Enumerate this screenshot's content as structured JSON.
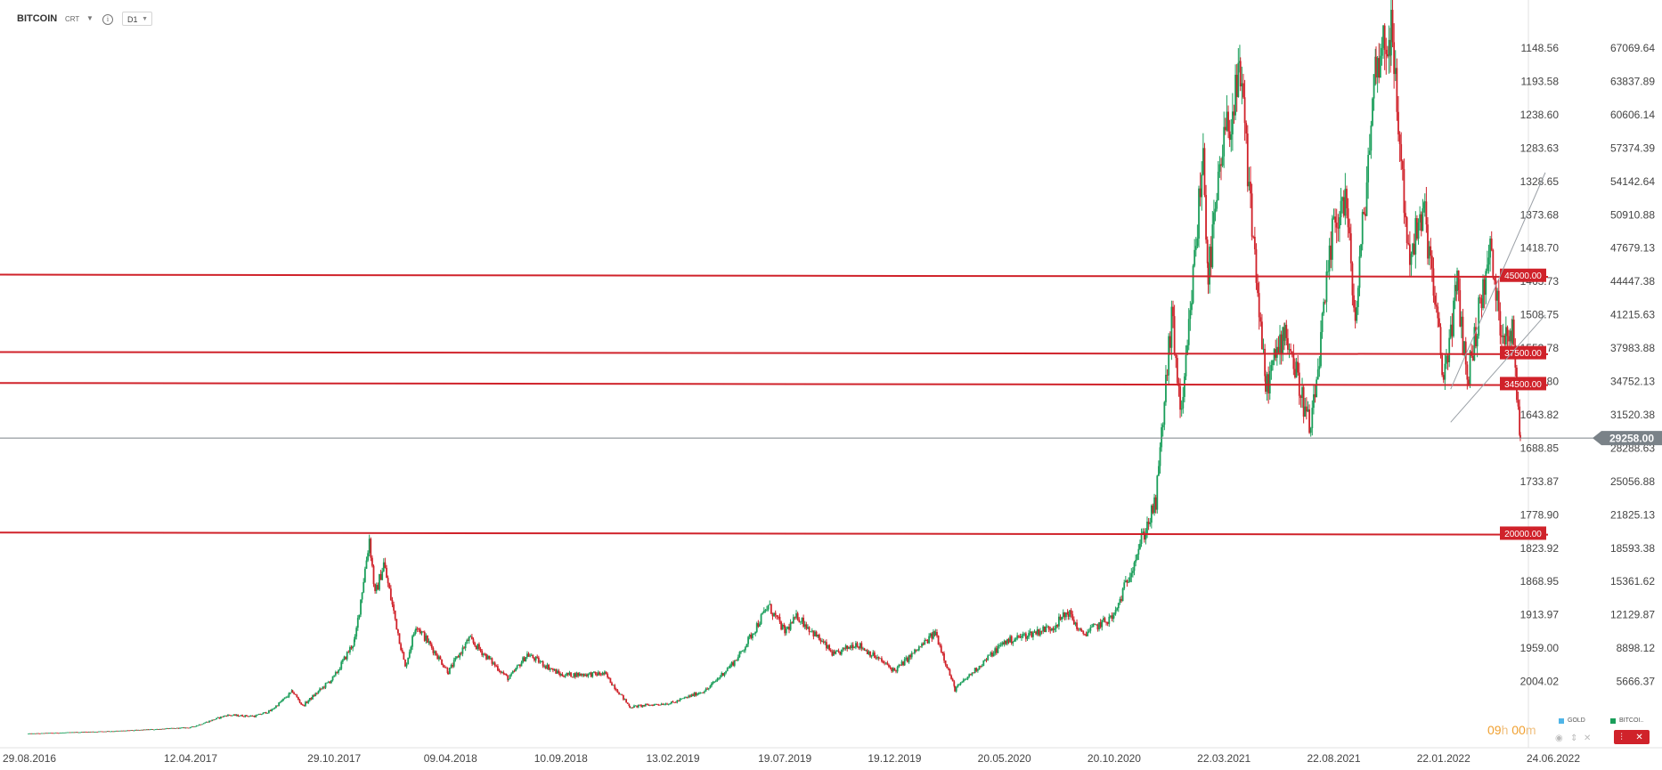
{
  "header": {
    "symbol": "BITCOIN",
    "sub": "CRT",
    "timeframe": "D1"
  },
  "timer": {
    "hours": "09",
    "h_unit": "h",
    "minutes": "00",
    "m_unit": "m"
  },
  "legend": [
    {
      "label": "GOLD",
      "color": "#4fb5e8"
    },
    {
      "label": "BITCOI..",
      "color": "#1a9e5a"
    }
  ],
  "colors": {
    "up": "#1a9e5a",
    "down": "#d0222a",
    "level": "#d0222a",
    "current": "#7a8288",
    "channel": "#9aa0a6"
  },
  "chart_data": {
    "type": "candlestick",
    "title": "BITCOIN",
    "x_ticks": [
      "29.08.2016",
      "12.04.2017",
      "29.10.2017",
      "09.04.2018",
      "10.09.2018",
      "13.02.2019",
      "19.07.2019",
      "19.12.2019",
      "20.05.2020",
      "20.10.2020",
      "22.03.2021",
      "22.08.2021",
      "22.01.2022",
      "24.06.2022"
    ],
    "y_ticks_left": [
      "1148.56",
      "1193.58",
      "1238.60",
      "1283.63",
      "1328.65",
      "1373.68",
      "1418.70",
      "1463.73",
      "1508.75",
      "1553.78",
      "1598.80",
      "1643.82",
      "1688.85",
      "1733.87",
      "1778.90",
      "1823.92",
      "1868.95",
      "1913.97",
      "1959.00",
      "2004.02"
    ],
    "y_ticks_right": [
      "67069.64",
      "63837.89",
      "60606.14",
      "57374.39",
      "54142.64",
      "50910.88",
      "47679.13",
      "44447.38",
      "41215.63",
      "37983.88",
      "34752.13",
      "31520.38",
      "28288.63",
      "25056.88",
      "21825.13",
      "18593.38",
      "15361.62",
      "12129.87",
      "8898.12",
      "5666.37"
    ],
    "ylim": [
      1000,
      72000
    ],
    "current_price": "29258.00",
    "levels": [
      {
        "price": 45000,
        "label": "45000.00"
      },
      {
        "price": 37500,
        "label": "37500.00"
      },
      {
        "price": 34500,
        "label": "34500.00"
      },
      {
        "price": 20000,
        "label": "20000.00"
      }
    ],
    "price_path": [
      [
        "29.08.2016",
        600
      ],
      [
        "15.01.2017",
        900
      ],
      [
        "12.04.2017",
        1200
      ],
      [
        "01.06.2017",
        2400
      ],
      [
        "10.07.2017",
        2300
      ],
      [
        "01.08.2017",
        2800
      ],
      [
        "01.09.2017",
        4700
      ],
      [
        "15.09.2017",
        3300
      ],
      [
        "29.10.2017",
        6100
      ],
      [
        "27.11.2017",
        9700
      ],
      [
        "17.12.2017",
        19500
      ],
      [
        "25.12.2017",
        14000
      ],
      [
        "06.01.2018",
        17100
      ],
      [
        "05.02.2018",
        7000
      ],
      [
        "20.02.2018",
        11200
      ],
      [
        "06.04.2018",
        6600
      ],
      [
        "05.05.2018",
        9800
      ],
      [
        "29.06.2018",
        5900
      ],
      [
        "25.07.2018",
        8300
      ],
      [
        "10.09.2018",
        6300
      ],
      [
        "10.11.2018",
        6400
      ],
      [
        "15.12.2018",
        3200
      ],
      [
        "13.02.2019",
        3600
      ],
      [
        "02.04.2019",
        4900
      ],
      [
        "15.05.2019",
        8000
      ],
      [
        "26.06.2019",
        13000
      ],
      [
        "19.07.2019",
        10500
      ],
      [
        "06.08.2019",
        12000
      ],
      [
        "26.09.2019",
        8200
      ],
      [
        "26.10.2019",
        9400
      ],
      [
        "19.12.2019",
        6700
      ],
      [
        "14.02.2020",
        10400
      ],
      [
        "12.03.2020",
        4900
      ],
      [
        "20.05.2020",
        9500
      ],
      [
        "27.07.2020",
        11000
      ],
      [
        "17.08.2020",
        12400
      ],
      [
        "05.09.2020",
        10200
      ],
      [
        "20.10.2020",
        12000
      ],
      [
        "25.11.2020",
        19000
      ],
      [
        "17.12.2020",
        23000
      ],
      [
        "08.01.2021",
        41000
      ],
      [
        "22.01.2021",
        31000
      ],
      [
        "21.02.2021",
        57000
      ],
      [
        "28.02.2021",
        45000
      ],
      [
        "22.03.2021",
        58000
      ],
      [
        "14.04.2021",
        64000
      ],
      [
        "19.05.2021",
        34000
      ],
      [
        "15.06.2021",
        40000
      ],
      [
        "21.07.2021",
        29800
      ],
      [
        "22.08.2021",
        50000
      ],
      [
        "07.09.2021",
        52700
      ],
      [
        "21.09.2021",
        40500
      ],
      [
        "20.10.2021",
        66000
      ],
      [
        "10.11.2021",
        68700
      ],
      [
        "04.12.2021",
        47000
      ],
      [
        "27.12.2021",
        51000
      ],
      [
        "22.01.2022",
        35000
      ],
      [
        "10.02.2022",
        44000
      ],
      [
        "24.02.2022",
        35000
      ],
      [
        "28.03.2022",
        47500
      ],
      [
        "11.04.2022",
        40000
      ],
      [
        "28.04.2022",
        39500
      ],
      [
        "09.05.2022",
        29258
      ]
    ]
  }
}
